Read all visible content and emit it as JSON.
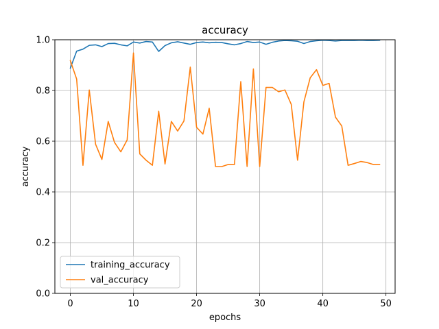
{
  "chart_data": {
    "type": "line",
    "title": "accuracy",
    "xlabel": "epochs",
    "ylabel": "accuracy",
    "xlim": [
      -2.45,
      51.45
    ],
    "ylim": [
      0,
      1.0
    ],
    "xticks": [
      0,
      10,
      20,
      30,
      40,
      50
    ],
    "yticks": [
      0.0,
      0.2,
      0.4,
      0.6,
      0.8,
      1.0
    ],
    "xtick_labels": [
      "0",
      "10",
      "20",
      "30",
      "40",
      "50"
    ],
    "ytick_labels": [
      "0.0",
      "0.2",
      "0.4",
      "0.6",
      "0.8",
      "1.0"
    ],
    "grid": true,
    "legend_position": "lower-left",
    "x": [
      0,
      1,
      2,
      3,
      4,
      5,
      6,
      7,
      8,
      9,
      10,
      11,
      12,
      13,
      14,
      15,
      16,
      17,
      18,
      19,
      20,
      21,
      22,
      23,
      24,
      25,
      26,
      27,
      28,
      29,
      30,
      31,
      32,
      33,
      34,
      35,
      36,
      37,
      38,
      39,
      40,
      41,
      42,
      43,
      44,
      45,
      46,
      47,
      48,
      49
    ],
    "series": [
      {
        "name": "training_accuracy",
        "color": "#1f77b4",
        "values": [
          0.888,
          0.955,
          0.963,
          0.978,
          0.98,
          0.973,
          0.985,
          0.986,
          0.98,
          0.976,
          0.991,
          0.987,
          0.993,
          0.991,
          0.954,
          0.977,
          0.988,
          0.992,
          0.987,
          0.982,
          0.989,
          0.991,
          0.988,
          0.99,
          0.989,
          0.984,
          0.98,
          0.985,
          0.993,
          0.989,
          0.991,
          0.982,
          0.99,
          0.995,
          0.997,
          0.996,
          0.994,
          0.985,
          0.993,
          0.996,
          0.998,
          0.997,
          0.995,
          0.997,
          0.997,
          0.997,
          0.998,
          0.997,
          0.997,
          0.998
        ]
      },
      {
        "name": "val_accuracy",
        "color": "#ff7f0e",
        "values": [
          0.918,
          0.845,
          0.505,
          0.802,
          0.588,
          0.528,
          0.678,
          0.595,
          0.558,
          0.605,
          0.948,
          0.55,
          0.525,
          0.505,
          0.718,
          0.51,
          0.678,
          0.64,
          0.68,
          0.892,
          0.655,
          0.628,
          0.73,
          0.5,
          0.5,
          0.508,
          0.508,
          0.835,
          0.5,
          0.885,
          0.5,
          0.812,
          0.812,
          0.795,
          0.802,
          0.745,
          0.525,
          0.755,
          0.85,
          0.882,
          0.82,
          0.828,
          0.695,
          0.66,
          0.505,
          0.512,
          0.52,
          0.516,
          0.508,
          0.508
        ]
      }
    ]
  }
}
